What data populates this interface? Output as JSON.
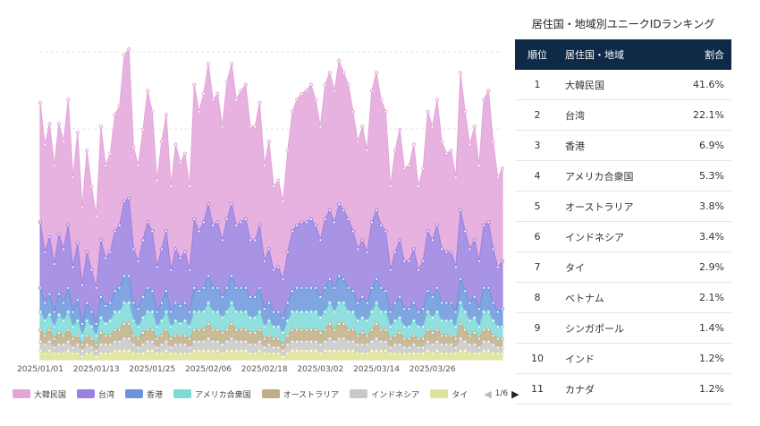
{
  "chart_data": {
    "type": "area",
    "x_tick_labels": [
      "2025/01/01",
      "2025/01/13",
      "2025/01/25",
      "2025/02/06",
      "2025/02/18",
      "2025/03/02",
      "2025/03/14",
      "2025/03/26"
    ],
    "x_start": "2025/01/01",
    "x_end": "2025/03/31",
    "grid": true,
    "legend": "bottom",
    "series": [
      {
        "name": "大韓民国",
        "color": "#e3a5d9",
        "values": [
          40,
          36,
          38,
          33,
          37,
          36,
          42,
          30,
          37,
          26,
          34,
          28,
          24,
          38,
          31,
          33,
          39,
          40,
          49,
          50,
          34,
          32,
          37,
          44,
          40,
          29,
          36,
          39,
          28,
          35,
          32,
          33,
          28,
          45,
          40,
          43,
          47,
          42,
          43,
          38,
          46,
          47,
          42,
          44,
          45,
          38,
          38,
          41,
          32,
          36,
          28,
          29,
          26,
          34,
          40,
          42,
          43,
          44,
          45,
          42,
          38,
          45,
          46,
          44,
          48,
          46,
          45,
          40,
          36,
          38,
          34,
          44,
          46,
          42,
          40,
          28,
          34,
          37,
          31,
          32,
          35,
          28,
          31,
          40,
          38,
          42,
          36,
          33,
          34,
          30,
          46,
          40,
          35,
          38,
          32,
          42,
          44,
          36,
          30,
          31
        ]
      },
      {
        "name": "台湾",
        "color": "#9a80e0",
        "values": [
          22,
          17,
          19,
          16,
          20,
          18,
          21,
          15,
          19,
          13,
          17,
          14,
          12,
          19,
          16,
          17,
          20,
          21,
          25,
          26,
          18,
          16,
          19,
          22,
          20,
          15,
          18,
          20,
          14,
          18,
          16,
          17,
          14,
          23,
          20,
          22,
          24,
          21,
          22,
          19,
          23,
          24,
          21,
          22,
          23,
          19,
          19,
          21,
          16,
          18,
          14,
          15,
          13,
          17,
          20,
          21,
          22,
          22,
          23,
          21,
          19,
          23,
          23,
          22,
          24,
          23,
          23,
          20,
          18,
          19,
          17,
          22,
          23,
          21,
          20,
          14,
          17,
          19,
          16,
          16,
          18,
          14,
          16,
          20,
          19,
          21,
          18,
          17,
          17,
          15,
          23,
          20,
          18,
          19,
          16,
          21,
          22,
          18,
          15,
          16
        ]
      },
      {
        "name": "香港",
        "color": "#6a95dc",
        "values": [
          8,
          6,
          7,
          5,
          7,
          6,
          8,
          5,
          7,
          4,
          6,
          5,
          4,
          7,
          6,
          6,
          7,
          8,
          9,
          9,
          6,
          6,
          7,
          8,
          7,
          5,
          6,
          7,
          5,
          6,
          6,
          6,
          5,
          8,
          7,
          8,
          9,
          8,
          8,
          7,
          8,
          9,
          8,
          8,
          8,
          7,
          7,
          8,
          6,
          6,
          5,
          5,
          5,
          6,
          7,
          8,
          8,
          8,
          8,
          8,
          7,
          8,
          8,
          8,
          9,
          8,
          8,
          7,
          6,
          7,
          6,
          8,
          8,
          8,
          7,
          5,
          6,
          7,
          6,
          6,
          6,
          5,
          6,
          7,
          7,
          8,
          6,
          6,
          6,
          5,
          8,
          7,
          6,
          7,
          6,
          8,
          8,
          6,
          5,
          6
        ]
      },
      {
        "name": "アメリカ合衆国",
        "color": "#7ed9d9",
        "values": [
          6,
          5,
          5,
          4,
          6,
          5,
          6,
          4,
          5,
          3,
          5,
          4,
          3,
          5,
          4,
          5,
          6,
          6,
          7,
          7,
          5,
          4,
          5,
          6,
          6,
          4,
          5,
          6,
          4,
          5,
          4,
          5,
          4,
          6,
          6,
          6,
          7,
          6,
          6,
          5,
          6,
          7,
          6,
          6,
          6,
          5,
          5,
          6,
          4,
          5,
          4,
          4,
          4,
          5,
          6,
          6,
          6,
          6,
          6,
          6,
          5,
          6,
          7,
          6,
          7,
          7,
          6,
          6,
          5,
          5,
          5,
          6,
          7,
          6,
          6,
          4,
          5,
          5,
          4,
          4,
          5,
          4,
          4,
          6,
          5,
          6,
          5,
          5,
          5,
          4,
          7,
          6,
          5,
          5,
          4,
          6,
          6,
          5,
          4,
          4
        ]
      },
      {
        "name": "オーストラリア",
        "color": "#bfae86",
        "values": [
          4,
          3,
          4,
          3,
          4,
          3,
          4,
          3,
          3,
          2,
          3,
          3,
          2,
          4,
          3,
          3,
          4,
          4,
          5,
          5,
          3,
          3,
          4,
          4,
          4,
          3,
          3,
          4,
          3,
          3,
          3,
          3,
          3,
          4,
          4,
          4,
          5,
          4,
          4,
          4,
          4,
          5,
          4,
          4,
          4,
          4,
          4,
          4,
          3,
          3,
          3,
          3,
          2,
          3,
          4,
          4,
          4,
          4,
          4,
          4,
          4,
          4,
          5,
          4,
          5,
          5,
          4,
          4,
          3,
          4,
          3,
          4,
          5,
          4,
          4,
          3,
          3,
          4,
          3,
          3,
          3,
          3,
          3,
          4,
          4,
          4,
          3,
          3,
          3,
          3,
          5,
          4,
          3,
          4,
          3,
          4,
          4,
          3,
          3,
          3
        ]
      },
      {
        "name": "インドネシア",
        "color": "#c8c8c8",
        "values": [
          3,
          3,
          3,
          2,
          3,
          3,
          3,
          2,
          3,
          2,
          3,
          2,
          2,
          3,
          3,
          3,
          3,
          3,
          4,
          4,
          3,
          2,
          3,
          3,
          3,
          2,
          3,
          3,
          2,
          3,
          3,
          3,
          2,
          3,
          3,
          3,
          4,
          3,
          3,
          3,
          3,
          4,
          3,
          3,
          3,
          3,
          3,
          3,
          2,
          3,
          2,
          2,
          2,
          3,
          3,
          3,
          3,
          3,
          3,
          3,
          3,
          3,
          4,
          3,
          4,
          4,
          3,
          3,
          3,
          3,
          3,
          3,
          4,
          3,
          3,
          2,
          3,
          3,
          2,
          2,
          3,
          2,
          2,
          3,
          3,
          3,
          3,
          3,
          3,
          2,
          4,
          3,
          3,
          3,
          2,
          3,
          3,
          3,
          2,
          2
        ]
      },
      {
        "name": "タイ",
        "color": "#dde39a",
        "values": [
          3,
          2,
          3,
          2,
          2,
          2,
          3,
          2,
          2,
          1,
          2,
          2,
          1,
          2,
          2,
          2,
          3,
          3,
          3,
          3,
          2,
          2,
          2,
          3,
          3,
          2,
          2,
          3,
          2,
          2,
          2,
          2,
          2,
          3,
          3,
          3,
          3,
          3,
          3,
          2,
          3,
          3,
          3,
          3,
          3,
          2,
          2,
          3,
          2,
          2,
          2,
          2,
          1,
          2,
          3,
          3,
          3,
          3,
          3,
          3,
          2,
          3,
          3,
          3,
          3,
          3,
          3,
          3,
          2,
          2,
          2,
          3,
          3,
          3,
          3,
          2,
          2,
          2,
          2,
          2,
          2,
          2,
          2,
          3,
          2,
          3,
          2,
          2,
          2,
          2,
          3,
          3,
          2,
          2,
          2,
          3,
          3,
          2,
          2,
          2
        ]
      }
    ]
  },
  "legend_pager": {
    "page_text": "1/6"
  },
  "ranking": {
    "title": "居住国・地域別ユニークIDランキング",
    "headers": {
      "rank": "順位",
      "region": "居住国・地域",
      "share": "割合"
    },
    "rows": [
      {
        "rank": "1",
        "region": "大韓民国",
        "share": "41.6%"
      },
      {
        "rank": "2",
        "region": "台湾",
        "share": "22.1%"
      },
      {
        "rank": "3",
        "region": "香港",
        "share": "6.9%"
      },
      {
        "rank": "4",
        "region": "アメリカ合衆国",
        "share": "5.3%"
      },
      {
        "rank": "5",
        "region": "オーストラリア",
        "share": "3.8%"
      },
      {
        "rank": "6",
        "region": "インドネシア",
        "share": "3.4%"
      },
      {
        "rank": "7",
        "region": "タイ",
        "share": "2.9%"
      },
      {
        "rank": "8",
        "region": "ベトナム",
        "share": "2.1%"
      },
      {
        "rank": "9",
        "region": "シンガポール",
        "share": "1.4%"
      },
      {
        "rank": "10",
        "region": "インド",
        "share": "1.2%"
      },
      {
        "rank": "11",
        "region": "カナダ",
        "share": "1.2%"
      }
    ]
  }
}
